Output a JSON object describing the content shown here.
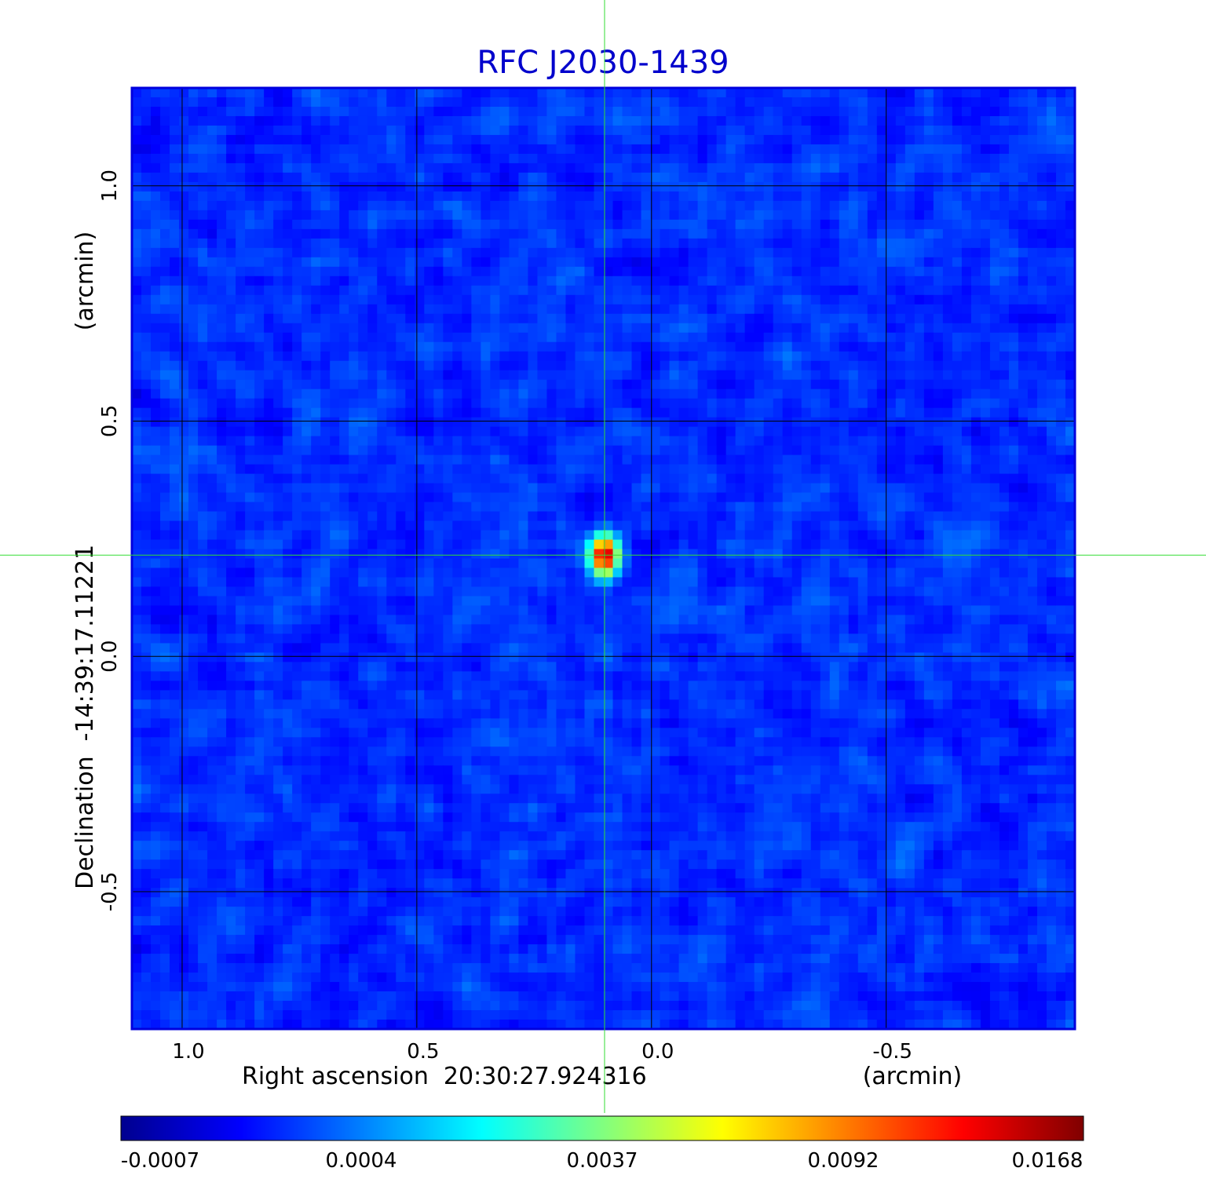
{
  "chart_data": {
    "type": "heatmap",
    "title": "RFC J2030-1439",
    "xlabel": "Right ascension  20:30:27.924316",
    "xunit": "(arcmin)",
    "ylabel": "Declination  -14:39:17.11221",
    "yunit": "(arcmin)",
    "xlim": [
      1.107,
      -0.902
    ],
    "ylim": [
      -0.792,
      1.208
    ],
    "x_ticks": [
      1.0,
      0.5,
      0.0,
      -0.5
    ],
    "x_tick_labels": [
      "1.0",
      "0.5",
      "0.0",
      "-0.5"
    ],
    "y_ticks": [
      1.0,
      0.5,
      0.0,
      -0.5
    ],
    "y_tick_labels": [
      "1.0",
      "0.5",
      "0.0",
      "-0.5"
    ],
    "grid": true,
    "crosshair": {
      "x": 0.1,
      "y": 0.215,
      "color": "#33dd33"
    },
    "source": {
      "x": 0.1,
      "y": 0.215,
      "peak": 0.0168
    },
    "colorscale": "jet",
    "colorbar": {
      "min": -0.0007,
      "max": 0.0168,
      "tick_labels": [
        "-0.0007",
        "0.0004",
        "0.0037",
        "0.0092",
        "0.0168"
      ]
    },
    "colors": {
      "title": "#0000cc",
      "frame": "#0000dd",
      "grid": "#000000"
    }
  }
}
